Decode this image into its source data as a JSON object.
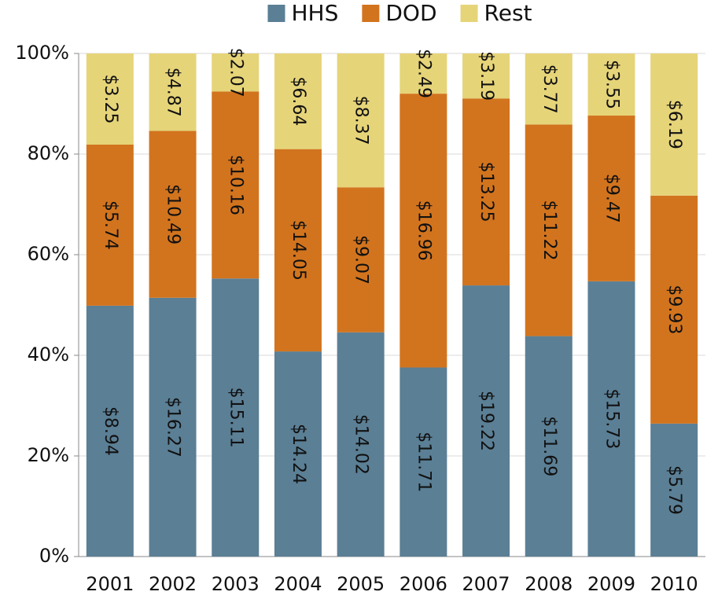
{
  "chart_data": {
    "type": "bar",
    "stacking": "percent",
    "categories": [
      "2001",
      "2002",
      "2003",
      "2004",
      "2005",
      "2006",
      "2007",
      "2008",
      "2009",
      "2010"
    ],
    "series": [
      {
        "name": "HHS",
        "color": "#5b7f95",
        "values": [
          8.94,
          16.27,
          15.11,
          14.24,
          14.02,
          11.71,
          19.22,
          11.69,
          15.73,
          5.79
        ],
        "value_labels": [
          "$8.94",
          "$16.27",
          "$15.11",
          "$14.24",
          "$14.02",
          "$11.71",
          "$19.22",
          "$11.69",
          "$15.73",
          "$5.79"
        ]
      },
      {
        "name": "DOD",
        "color": "#d2741e",
        "values": [
          5.74,
          10.49,
          10.16,
          14.05,
          9.07,
          16.96,
          13.25,
          11.22,
          9.47,
          9.93
        ],
        "value_labels": [
          "$5.74",
          "$10.49",
          "$10.16",
          "$14.05",
          "$9.07",
          "$16.96",
          "$13.25",
          "$11.22",
          "$9.47",
          "$9.93"
        ]
      },
      {
        "name": "Rest",
        "color": "#e6d479",
        "values": [
          3.25,
          4.87,
          2.07,
          6.64,
          8.37,
          2.49,
          3.19,
          3.77,
          3.55,
          6.19
        ],
        "value_labels": [
          "$3.25",
          "$4.87",
          "$2.07",
          "$6.64",
          "$8.37",
          "$2.49",
          "$3.19",
          "$3.77",
          "$3.55",
          "$6.19"
        ]
      }
    ],
    "ylim": [
      0,
      100
    ],
    "yticks": [
      {
        "value": 0,
        "label": "0%"
      },
      {
        "value": 20,
        "label": "20%"
      },
      {
        "value": 40,
        "label": "40%"
      },
      {
        "value": 60,
        "label": "60%"
      },
      {
        "value": 80,
        "label": "80%"
      },
      {
        "value": 100,
        "label": "100%"
      }
    ],
    "grid": true,
    "legend": "top"
  }
}
